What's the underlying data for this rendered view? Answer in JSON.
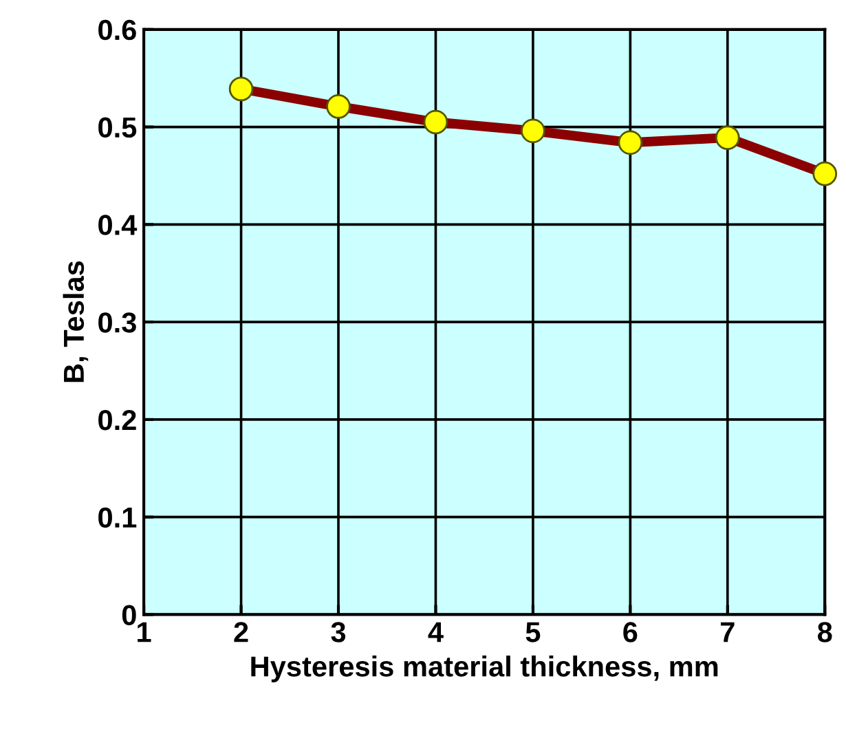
{
  "chart_data": {
    "type": "line",
    "xlabel": "Hysteresis material thickness, mm",
    "ylabel": "B, Teslas",
    "x": [
      2,
      3,
      4,
      5,
      6,
      7,
      8
    ],
    "series": [
      {
        "color": "#8b0000",
        "colors": [
          "#ffff00",
          "#ffff00",
          "#ffff00",
          "#ffff00",
          "#ffff00",
          "#ffff00",
          "#ffff00"
        ],
        "values": [
          0.539,
          0.521,
          0.505,
          0.496,
          0.484,
          0.489,
          0.452
        ]
      }
    ],
    "xlim": [
      1,
      8
    ],
    "ylim": [
      0,
      0.6
    ],
    "xticks": [
      1,
      2,
      3,
      4,
      5,
      6,
      7,
      8
    ],
    "yticks": [
      0,
      0.1,
      0.2,
      0.3,
      0.4,
      0.5,
      0.6
    ],
    "grid": true,
    "marker": "circle",
    "line_style": "solid"
  }
}
